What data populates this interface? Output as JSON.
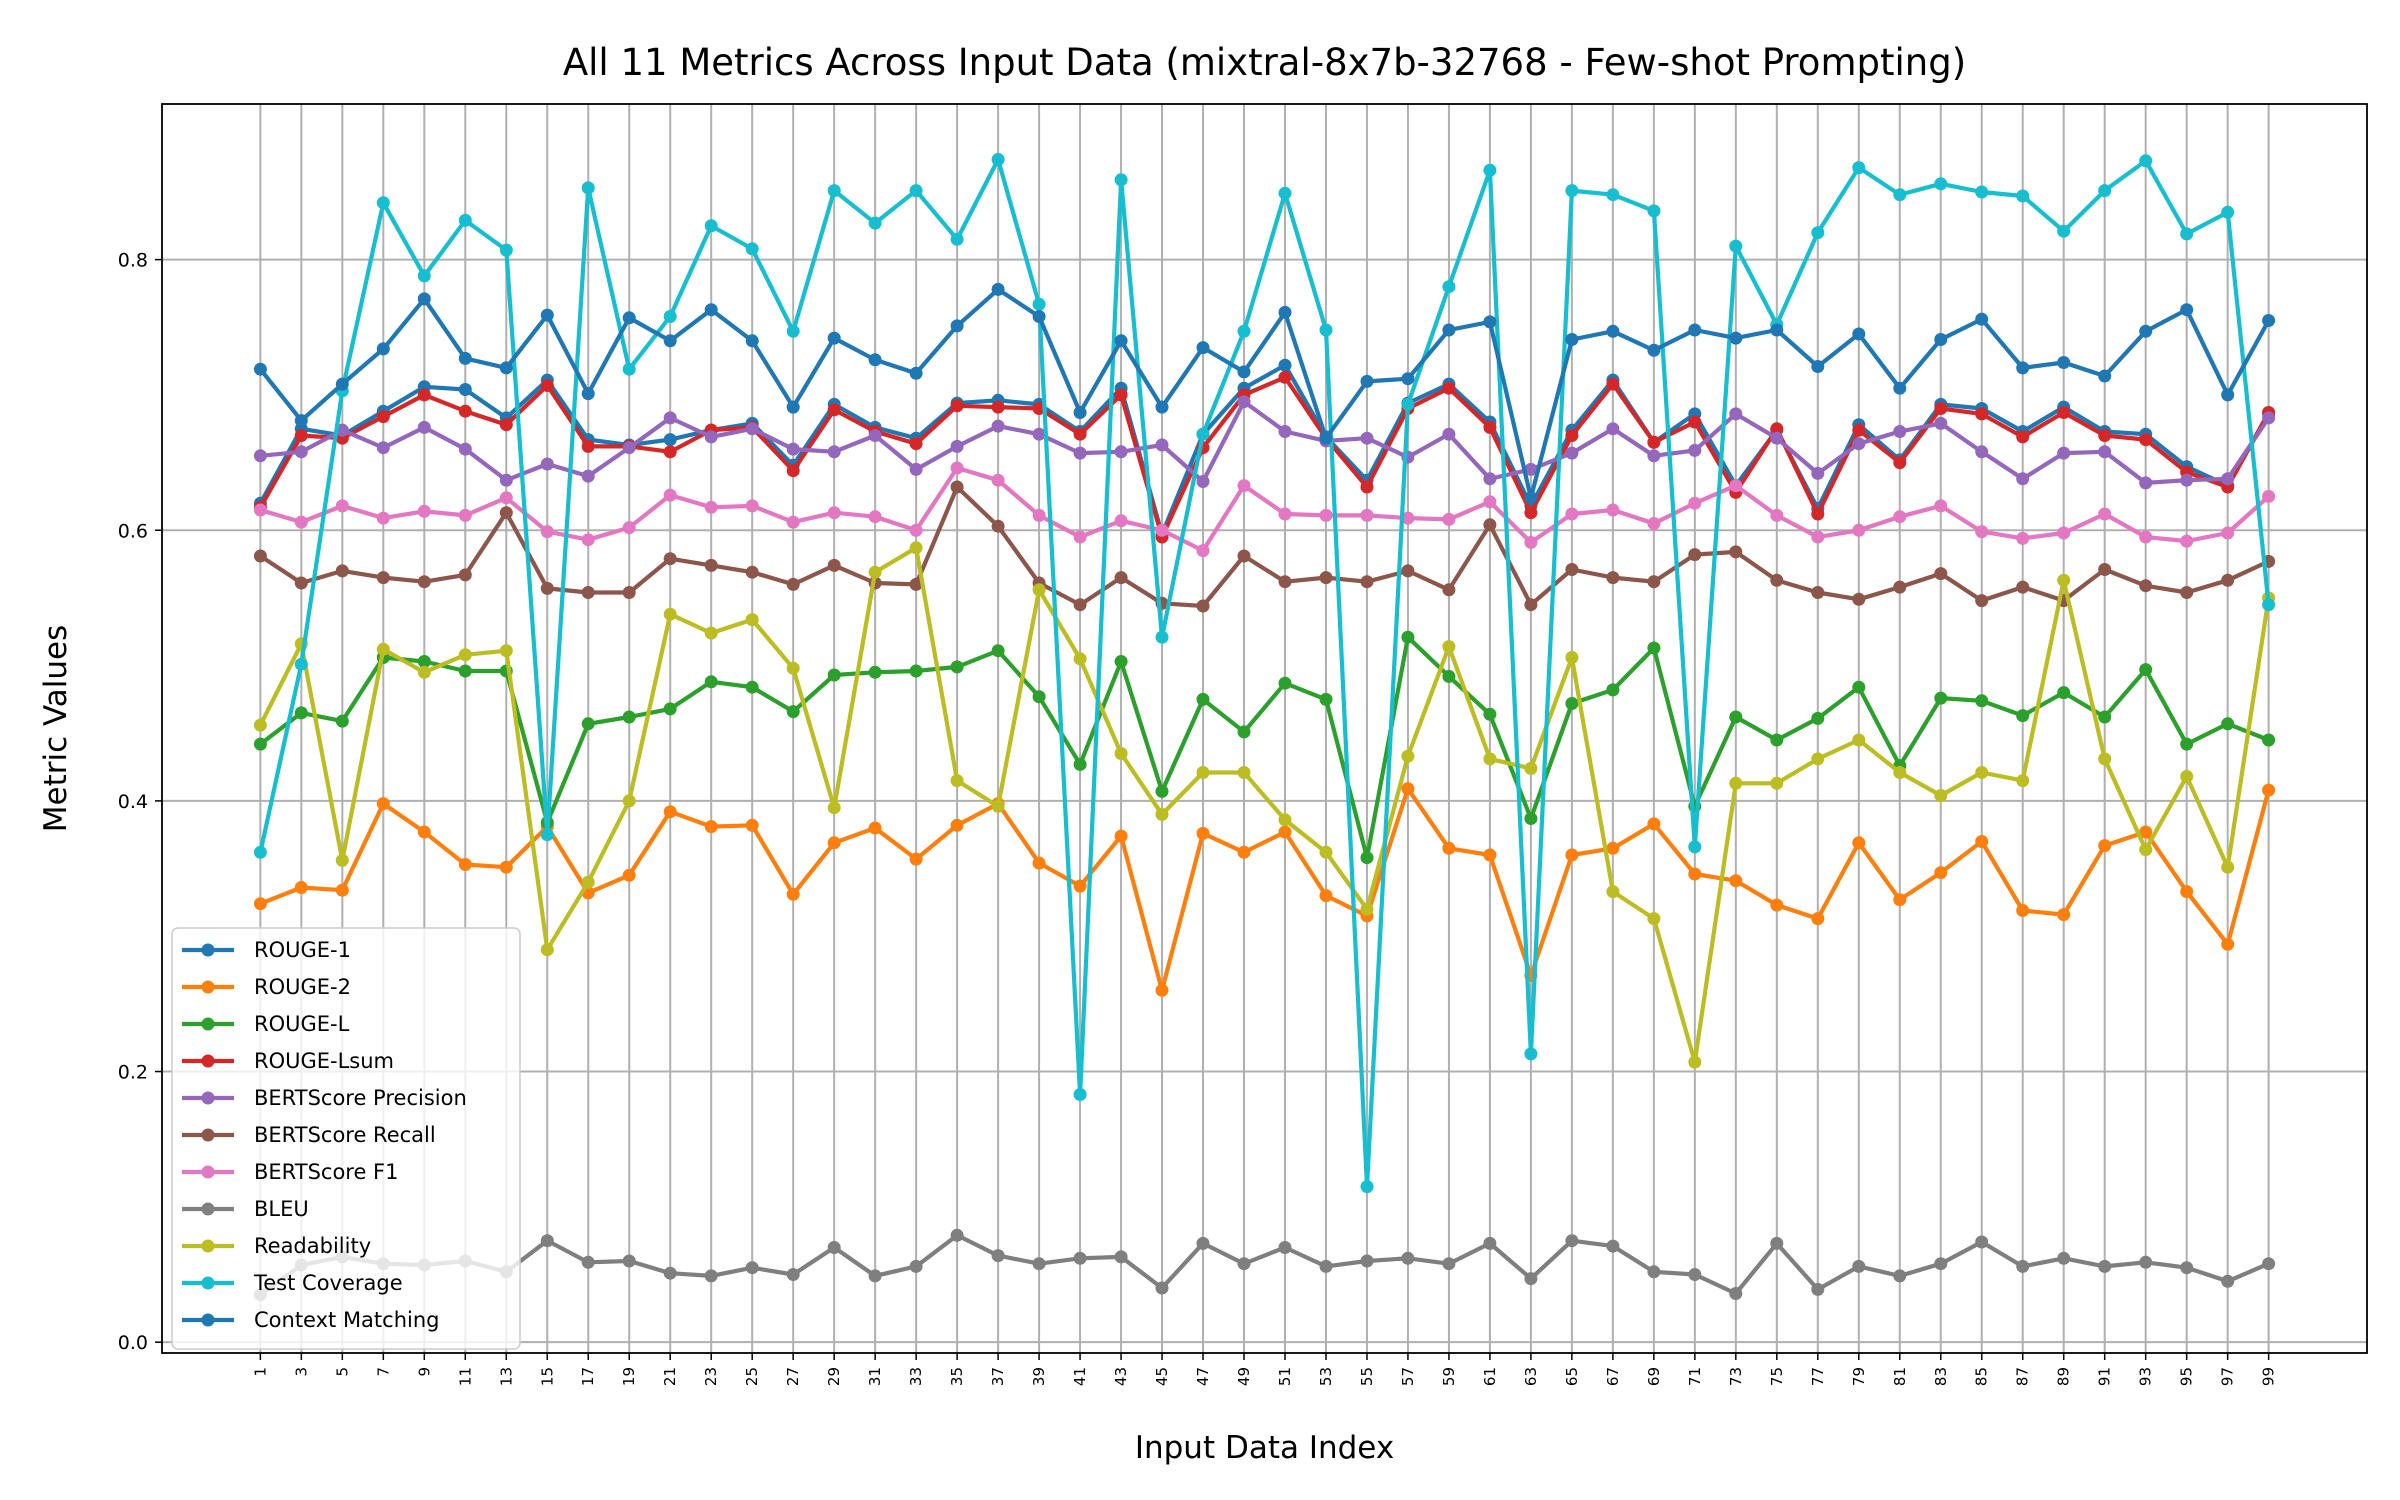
{
  "chart_data": {
    "type": "line",
    "title": "All 11 Metrics Across Input Data (mixtral-8x7b-32768 - Few-shot Prompting)",
    "xlabel": "Input Data Index",
    "ylabel": "Metric Values",
    "x": [
      1,
      3,
      5,
      7,
      9,
      11,
      13,
      15,
      17,
      19,
      21,
      23,
      25,
      27,
      29,
      31,
      33,
      35,
      37,
      39,
      41,
      43,
      45,
      47,
      49,
      51,
      53,
      55,
      57,
      59,
      61,
      63,
      65,
      67,
      69,
      71,
      73,
      75,
      77,
      79,
      81,
      83,
      85,
      87,
      89,
      91,
      93,
      95,
      97,
      99
    ],
    "xlim": [
      -3.8,
      103.8
    ],
    "ylim": [
      -0.008,
      0.915
    ],
    "yticks": [
      "0.0",
      "0.2",
      "0.4",
      "0.6",
      "0.8"
    ],
    "grid": true,
    "legend_position": "lower-left",
    "series": [
      {
        "name": "ROUGE-1",
        "color": "#1f77b4",
        "values": [
          0.62,
          0.675,
          0.67,
          0.688,
          0.706,
          0.704,
          0.683,
          0.711,
          0.667,
          0.663,
          0.667,
          0.674,
          0.679,
          0.648,
          0.693,
          0.676,
          0.668,
          0.694,
          0.696,
          0.693,
          0.673,
          0.705,
          0.597,
          0.671,
          0.705,
          0.722,
          0.669,
          0.637,
          0.694,
          0.708,
          0.68,
          0.618,
          0.674,
          0.711,
          0.665,
          0.686,
          0.633,
          0.674,
          0.616,
          0.678,
          0.652,
          0.693,
          0.69,
          0.673,
          0.691,
          0.673,
          0.671,
          0.647,
          0.633,
          0.686
        ]
      },
      {
        "name": "ROUGE-2",
        "color": "#ff7f0e",
        "values": [
          0.324,
          0.336,
          0.334,
          0.398,
          0.377,
          0.353,
          0.351,
          0.381,
          0.332,
          0.345,
          0.392,
          0.381,
          0.382,
          0.331,
          0.369,
          0.38,
          0.357,
          0.382,
          0.398,
          0.354,
          0.337,
          0.374,
          0.26,
          0.376,
          0.362,
          0.377,
          0.33,
          0.315,
          0.409,
          0.365,
          0.36,
          0.271,
          0.36,
          0.365,
          0.383,
          0.346,
          0.341,
          0.323,
          0.313,
          0.369,
          0.327,
          0.347,
          0.37,
          0.319,
          0.316,
          0.367,
          0.377,
          0.333,
          0.294,
          0.408
        ]
      },
      {
        "name": "ROUGE-L",
        "color": "#2ca02c",
        "values": [
          0.442,
          0.465,
          0.459,
          0.506,
          0.503,
          0.496,
          0.496,
          0.384,
          0.457,
          0.462,
          0.468,
          0.488,
          0.484,
          0.466,
          0.493,
          0.495,
          0.496,
          0.499,
          0.511,
          0.477,
          0.427,
          0.503,
          0.407,
          0.475,
          0.451,
          0.487,
          0.475,
          0.358,
          0.521,
          0.492,
          0.464,
          0.387,
          0.472,
          0.482,
          0.513,
          0.396,
          0.462,
          0.445,
          0.461,
          0.484,
          0.426,
          0.476,
          0.474,
          0.463,
          0.48,
          0.462,
          0.497,
          0.442,
          0.457,
          0.445
        ]
      },
      {
        "name": "ROUGE-Lsum",
        "color": "#d62728",
        "values": [
          0.617,
          0.67,
          0.668,
          0.684,
          0.7,
          0.688,
          0.678,
          0.707,
          0.662,
          0.662,
          0.658,
          0.674,
          0.676,
          0.644,
          0.689,
          0.673,
          0.664,
          0.692,
          0.691,
          0.69,
          0.671,
          0.7,
          0.595,
          0.661,
          0.7,
          0.713,
          0.668,
          0.632,
          0.69,
          0.705,
          0.676,
          0.613,
          0.67,
          0.708,
          0.665,
          0.68,
          0.628,
          0.675,
          0.612,
          0.674,
          0.65,
          0.69,
          0.686,
          0.669,
          0.687,
          0.67,
          0.667,
          0.643,
          0.632,
          0.687
        ]
      },
      {
        "name": "BERTScore Precision",
        "color": "#9467bd",
        "values": [
          0.655,
          0.658,
          0.674,
          0.661,
          0.676,
          0.66,
          0.637,
          0.649,
          0.64,
          0.661,
          0.683,
          0.669,
          0.675,
          0.66,
          0.658,
          0.67,
          0.645,
          0.662,
          0.677,
          0.671,
          0.657,
          0.658,
          0.663,
          0.636,
          0.695,
          0.673,
          0.666,
          0.668,
          0.654,
          0.671,
          0.638,
          0.645,
          0.657,
          0.675,
          0.655,
          0.659,
          0.686,
          0.668,
          0.642,
          0.664,
          0.673,
          0.679,
          0.658,
          0.638,
          0.657,
          0.658,
          0.635,
          0.637,
          0.638,
          0.683
        ]
      },
      {
        "name": "BERTScore Recall",
        "color": "#8c564b",
        "values": [
          0.581,
          0.561,
          0.57,
          0.565,
          0.562,
          0.567,
          0.613,
          0.557,
          0.554,
          0.554,
          0.579,
          0.574,
          0.569,
          0.56,
          0.574,
          0.561,
          0.56,
          0.632,
          0.603,
          0.561,
          0.545,
          0.565,
          0.546,
          0.544,
          0.581,
          0.562,
          0.565,
          0.562,
          0.57,
          0.556,
          0.604,
          0.545,
          0.571,
          0.565,
          0.562,
          0.582,
          0.584,
          0.563,
          0.554,
          0.549,
          0.558,
          0.568,
          0.548,
          0.558,
          0.548,
          0.571,
          0.559,
          0.554,
          0.563,
          0.577
        ]
      },
      {
        "name": "BERTScore F1",
        "color": "#e377c2",
        "values": [
          0.615,
          0.606,
          0.618,
          0.609,
          0.614,
          0.611,
          0.624,
          0.599,
          0.593,
          0.602,
          0.626,
          0.617,
          0.618,
          0.606,
          0.613,
          0.61,
          0.6,
          0.646,
          0.637,
          0.611,
          0.595,
          0.607,
          0.6,
          0.585,
          0.633,
          0.612,
          0.611,
          0.611,
          0.609,
          0.608,
          0.621,
          0.591,
          0.612,
          0.615,
          0.605,
          0.62,
          0.633,
          0.611,
          0.595,
          0.6,
          0.61,
          0.618,
          0.599,
          0.594,
          0.598,
          0.612,
          0.595,
          0.592,
          0.598,
          0.625
        ]
      },
      {
        "name": "BLEU",
        "color": "#7f7f7f",
        "values": [
          0.035,
          0.057,
          0.063,
          0.058,
          0.057,
          0.06,
          0.052,
          0.075,
          0.059,
          0.06,
          0.051,
          0.049,
          0.055,
          0.05,
          0.07,
          0.049,
          0.056,
          0.079,
          0.064,
          0.058,
          0.062,
          0.063,
          0.04,
          0.073,
          0.058,
          0.07,
          0.056,
          0.06,
          0.062,
          0.058,
          0.073,
          0.047,
          0.075,
          0.071,
          0.052,
          0.05,
          0.036,
          0.073,
          0.039,
          0.056,
          0.049,
          0.058,
          0.074,
          0.056,
          0.062,
          0.056,
          0.059,
          0.055,
          0.045,
          0.058
        ]
      },
      {
        "name": "Readability",
        "color": "#bcbd22",
        "values": [
          0.456,
          0.516,
          0.356,
          0.512,
          0.495,
          0.508,
          0.511,
          0.29,
          0.34,
          0.4,
          0.538,
          0.524,
          0.534,
          0.498,
          0.395,
          0.569,
          0.587,
          0.415,
          0.396,
          0.556,
          0.505,
          0.435,
          0.39,
          0.421,
          0.421,
          0.386,
          0.362,
          0.32,
          0.433,
          0.514,
          0.431,
          0.424,
          0.506,
          0.333,
          0.313,
          0.207,
          0.413,
          0.413,
          0.431,
          0.445,
          0.421,
          0.404,
          0.421,
          0.415,
          0.563,
          0.431,
          0.364,
          0.418,
          0.351,
          0.55
        ]
      },
      {
        "name": "Test Coverage",
        "color": "#17becf",
        "values": [
          0.362,
          0.501,
          0.703,
          0.842,
          0.788,
          0.829,
          0.807,
          0.375,
          0.853,
          0.719,
          0.758,
          0.825,
          0.808,
          0.747,
          0.851,
          0.827,
          0.851,
          0.815,
          0.874,
          0.767,
          0.183,
          0.859,
          0.521,
          0.671,
          0.747,
          0.849,
          0.748,
          0.115,
          0.693,
          0.78,
          0.866,
          0.213,
          0.851,
          0.848,
          0.836,
          0.366,
          0.81,
          0.752,
          0.82,
          0.868,
          0.848,
          0.856,
          0.85,
          0.847,
          0.821,
          0.851,
          0.873,
          0.819,
          0.835,
          0.545
        ]
      },
      {
        "name": "Context Matching",
        "color": "#1f77b4",
        "values": [
          0.719,
          0.681,
          0.708,
          0.734,
          0.771,
          0.727,
          0.72,
          0.759,
          0.701,
          0.757,
          0.74,
          0.763,
          0.74,
          0.691,
          0.742,
          0.726,
          0.716,
          0.751,
          0.778,
          0.758,
          0.687,
          0.74,
          0.691,
          0.735,
          0.717,
          0.761,
          0.668,
          0.71,
          0.712,
          0.748,
          0.754,
          0.624,
          0.741,
          0.747,
          0.733,
          0.748,
          0.742,
          0.748,
          0.721,
          0.745,
          0.705,
          0.741,
          0.756,
          0.72,
          0.724,
          0.714,
          0.747,
          0.763,
          0.7,
          0.755
        ]
      }
    ]
  }
}
